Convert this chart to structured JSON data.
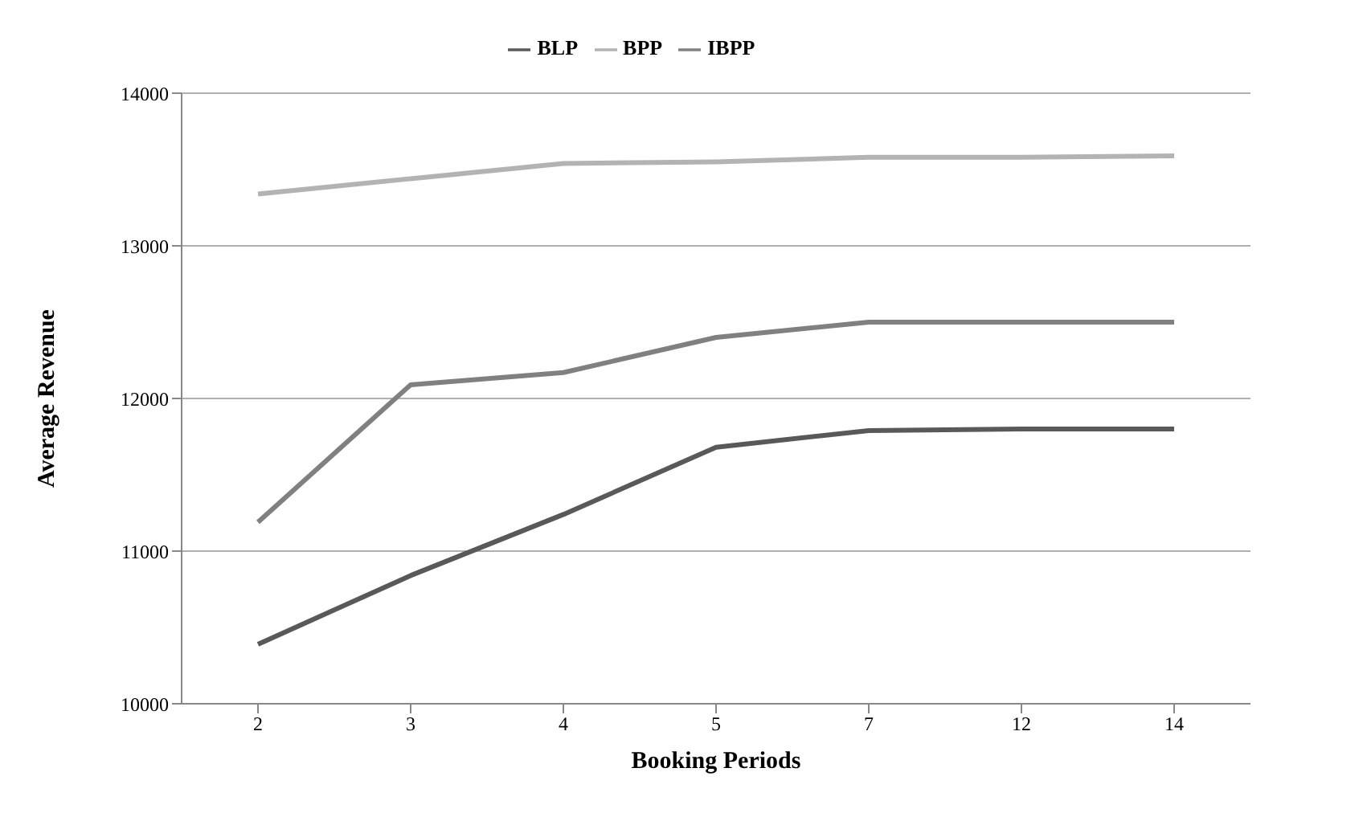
{
  "chart_data": {
    "type": "line",
    "xlabel": "Booking Periods",
    "ylabel": "Average Revenue",
    "categories": [
      "2",
      "3",
      "4",
      "5",
      "7",
      "12",
      "14"
    ],
    "series": [
      {
        "name": "BLP",
        "color": "#595959",
        "values": [
          10390,
          10840,
          11240,
          11680,
          11790,
          11800,
          11800
        ]
      },
      {
        "name": "BPP",
        "color": "#b3b3b3",
        "values": [
          13340,
          13440,
          13540,
          13550,
          13580,
          13580,
          13590
        ]
      },
      {
        "name": "IBPP",
        "color": "#808080",
        "values": [
          11190,
          12090,
          12170,
          12400,
          12500,
          12500,
          12500
        ]
      }
    ],
    "ylim": [
      10000,
      14000
    ],
    "yticks": [
      10000,
      11000,
      12000,
      13000,
      14000
    ],
    "grid": "y",
    "legend": "top",
    "marker": "none",
    "line_style": "solid"
  }
}
